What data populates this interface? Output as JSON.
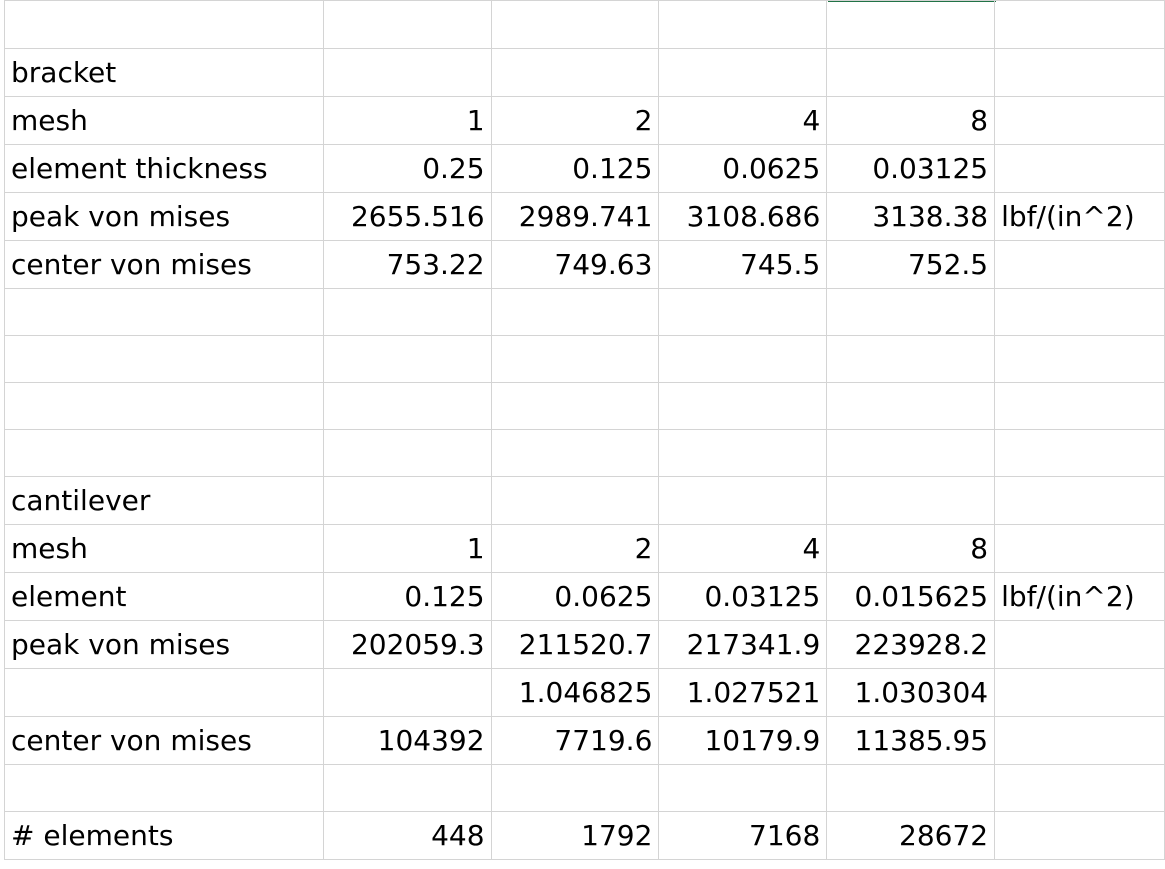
{
  "rows": [
    [
      "",
      "",
      "",
      "",
      "",
      ""
    ],
    [
      "bracket",
      "",
      "",
      "",
      "",
      ""
    ],
    [
      "mesh",
      "1",
      "2",
      "4",
      "8",
      ""
    ],
    [
      "element thickness",
      "0.25",
      "0.125",
      "0.0625",
      "0.03125",
      ""
    ],
    [
      "peak von mises",
      "2655.516",
      "2989.741",
      "3108.686",
      "3138.38",
      "lbf/(in^2)"
    ],
    [
      "center von mises",
      "753.22",
      "749.63",
      "745.5",
      "752.5",
      ""
    ],
    [
      "",
      "",
      "",
      "",
      "",
      ""
    ],
    [
      "",
      "",
      "",
      "",
      "",
      ""
    ],
    [
      "",
      "",
      "",
      "",
      "",
      ""
    ],
    [
      "",
      "",
      "",
      "",
      "",
      ""
    ],
    [
      "cantilever",
      "",
      "",
      "",
      "",
      ""
    ],
    [
      "mesh",
      "1",
      "2",
      "4",
      "8",
      ""
    ],
    [
      "element",
      "0.125",
      "0.0625",
      "0.03125",
      "0.015625",
      "lbf/(in^2)"
    ],
    [
      "peak von mises",
      "202059.3",
      "211520.7",
      "217341.9",
      "223928.2",
      ""
    ],
    [
      "",
      "",
      "1.046825",
      "1.027521",
      "1.030304",
      ""
    ],
    [
      "center von mises",
      "104392",
      "7719.6",
      "10179.9",
      "11385.95",
      ""
    ],
    [
      "",
      "",
      "",
      "",
      "",
      ""
    ],
    [
      "# elements",
      "448",
      "1792",
      "7168",
      "28672",
      ""
    ]
  ],
  "colors": {
    "gridline": "#d4d4d4",
    "selection": "#217346"
  }
}
